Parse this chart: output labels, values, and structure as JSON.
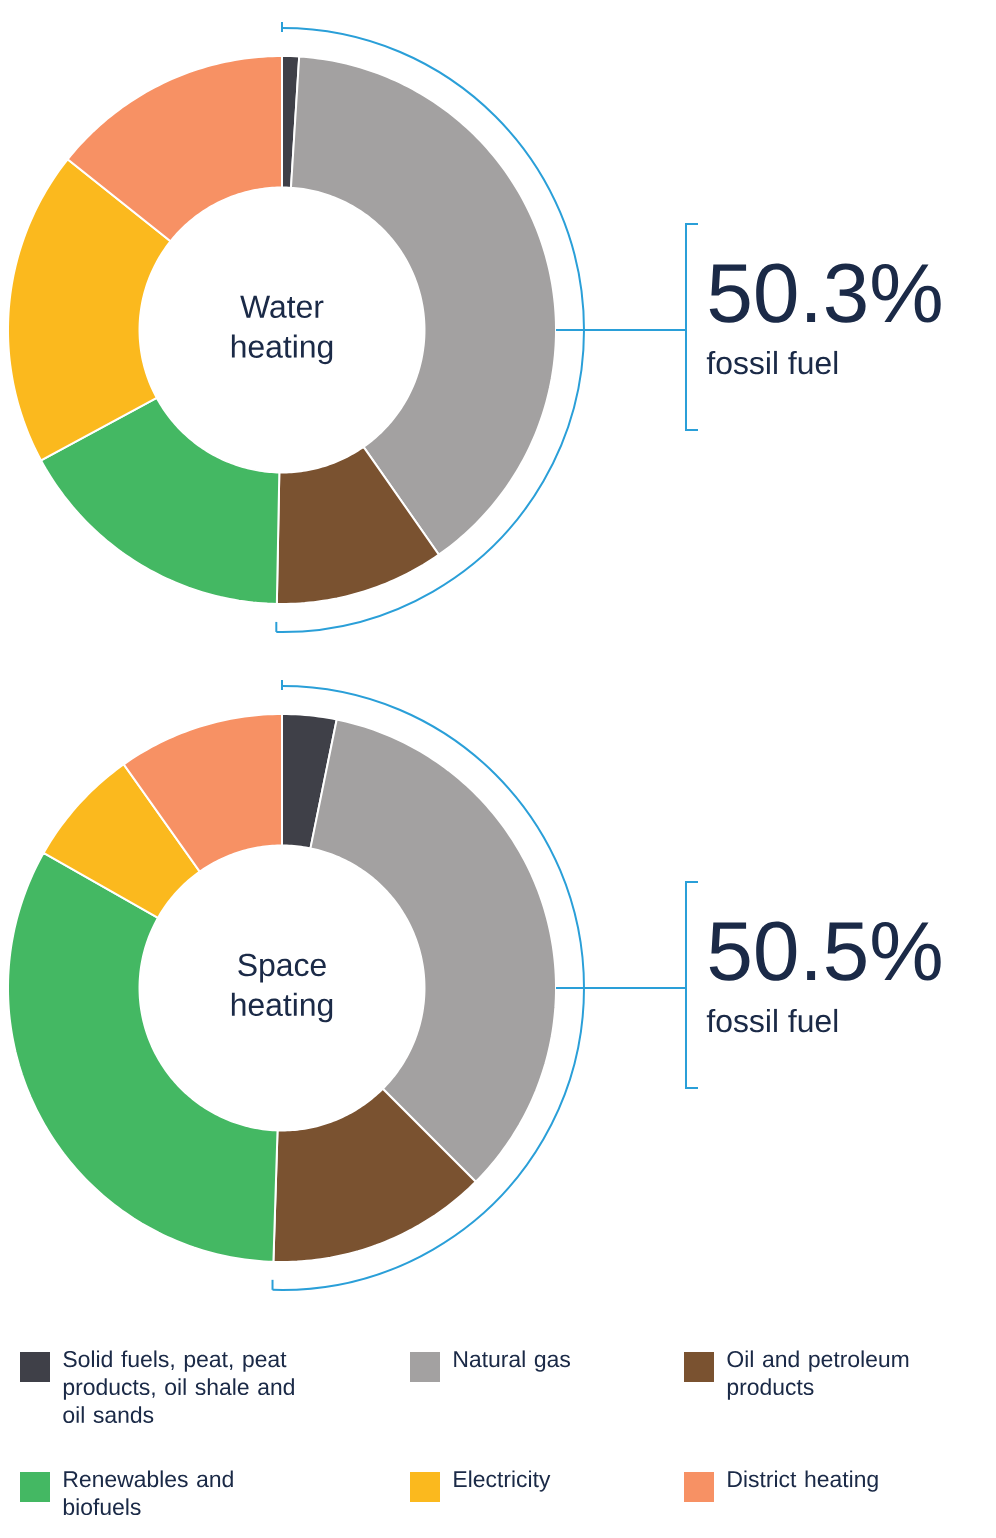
{
  "chart_data": [
    {
      "type": "donut",
      "title": "Water heating",
      "categories": [
        null,
        null,
        null,
        null,
        null,
        null
      ],
      "values": [
        1.0,
        39.3,
        10.0,
        16.8,
        18.6,
        14.3
      ],
      "colors": [
        "#3f4048",
        "#a3a1a1",
        "#7a5230",
        "#44b863",
        "#fbb91e",
        "#f79164"
      ],
      "annotations": [
        "50.3%",
        "fossil fuel"
      ]
    },
    {
      "type": "donut",
      "title": "Space heating",
      "categories": [
        "Solid fuels, peat, peat products, oil shale and oil sands",
        "Natural gas",
        "Oil and petroleum products",
        "Renewables and biofuels",
        "Electricity",
        "District heating"
      ],
      "values": [
        3.2,
        34.3,
        13.0,
        32.7,
        7.0,
        9.8
      ],
      "colors": [
        "#3f4048",
        "#a3a1a1",
        "#7a5230",
        "#44b863",
        "#fbb91e",
        "#f79164"
      ],
      "annotations": [
        "50.5%",
        "fossil fuel"
      ],
      "legend": "bottom"
    }
  ]
}
